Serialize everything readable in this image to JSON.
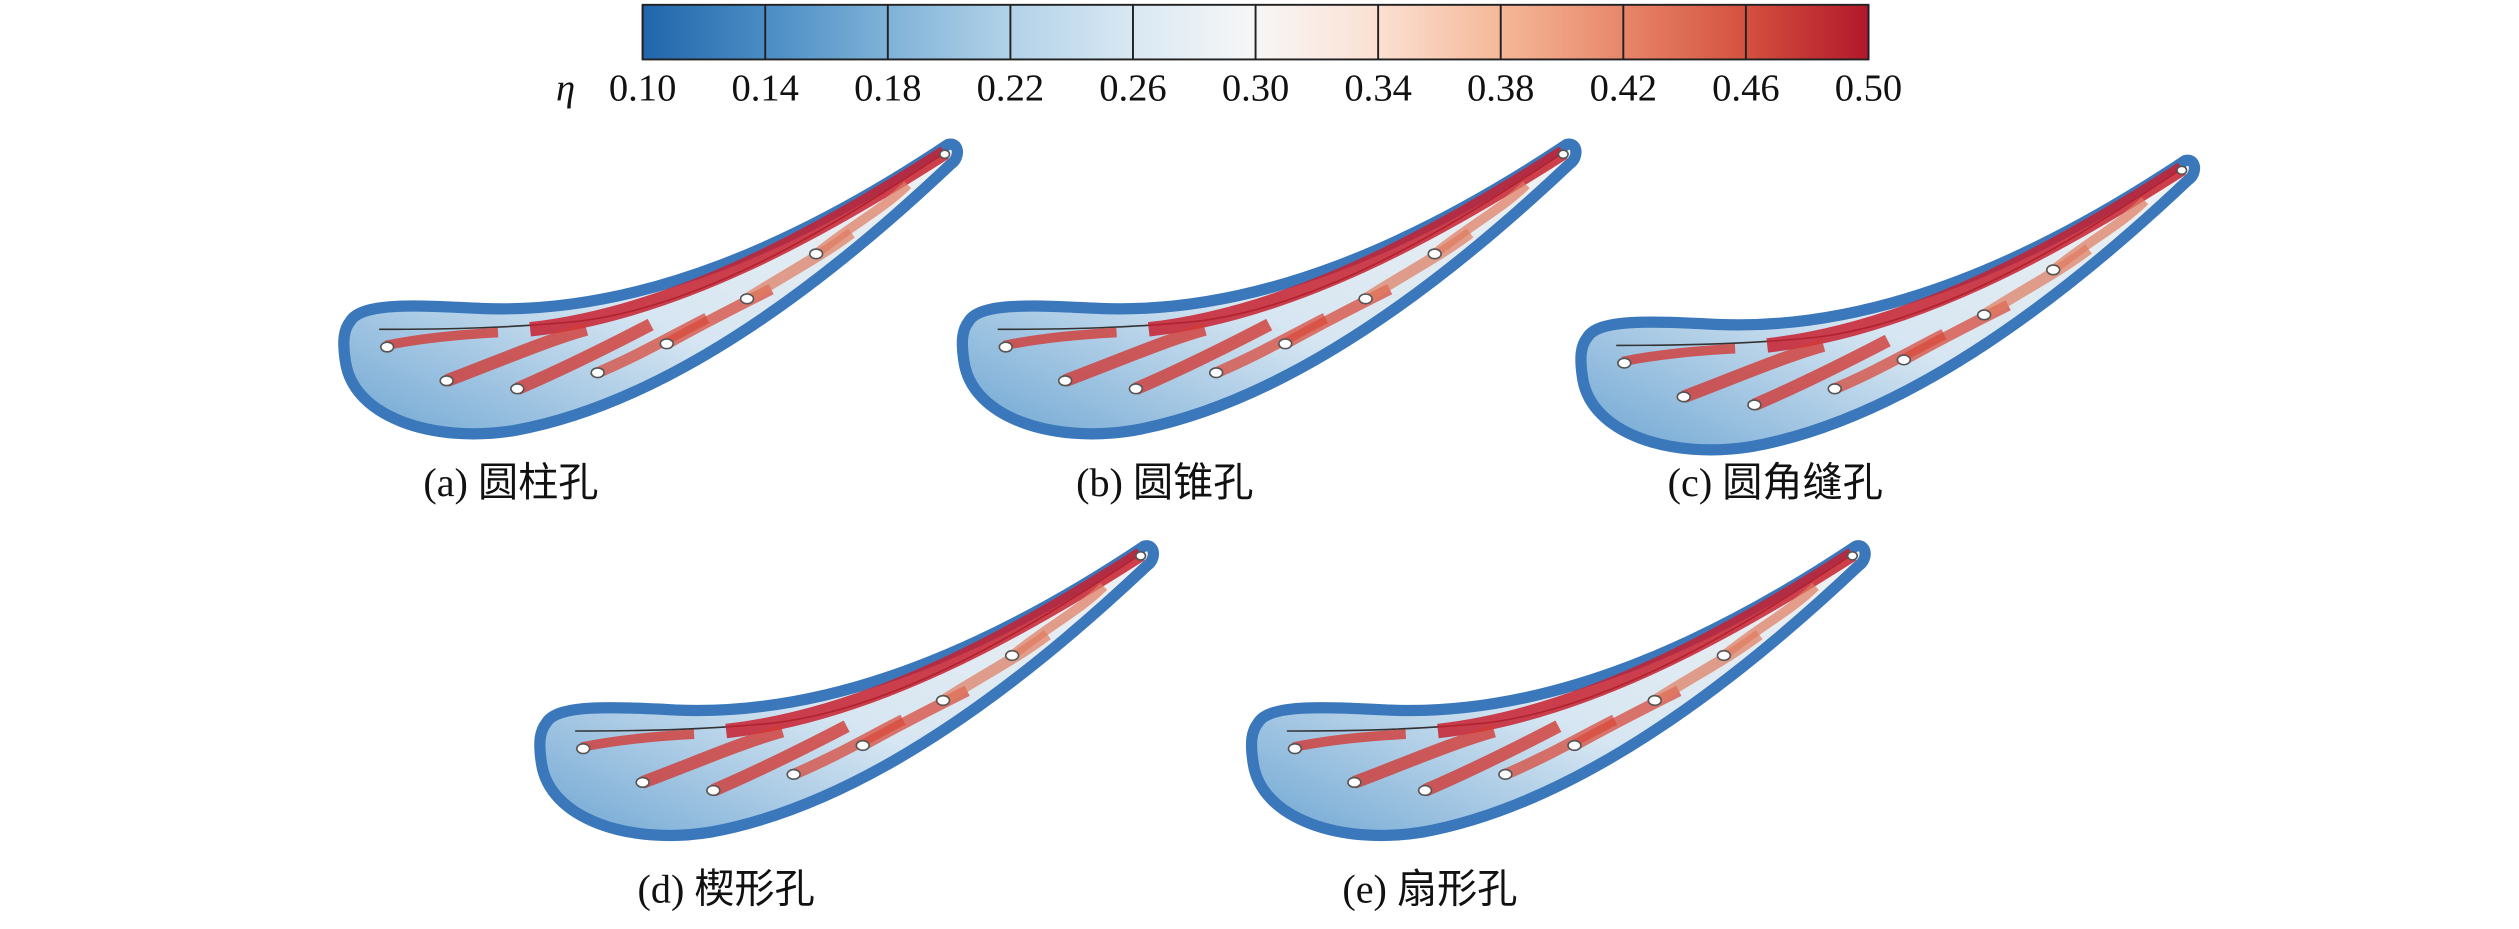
{
  "colorbar": {
    "symbol": "η",
    "ticks": [
      {
        "value": 0.1,
        "label": "0.10"
      },
      {
        "value": 0.14,
        "label": "0.14"
      },
      {
        "value": 0.18,
        "label": "0.18"
      },
      {
        "value": 0.22,
        "label": "0.22"
      },
      {
        "value": 0.26,
        "label": "0.26"
      },
      {
        "value": 0.3,
        "label": "0.30"
      },
      {
        "value": 0.34,
        "label": "0.34"
      },
      {
        "value": 0.38,
        "label": "0.38"
      },
      {
        "value": 0.42,
        "label": "0.42"
      },
      {
        "value": 0.46,
        "label": "0.46"
      },
      {
        "value": 0.5,
        "label": "0.50"
      }
    ],
    "colors": [
      "#2166ac",
      "#4a8cc4",
      "#7fb2d8",
      "#b2d2e8",
      "#d9e8f3",
      "#f7f7f7",
      "#fbe0d2",
      "#f5b898",
      "#e8866a",
      "#d4513f",
      "#b2182b"
    ]
  },
  "panels": [
    {
      "label": "(a) 圆柱孔"
    },
    {
      "label": "(b) 圆锥孔"
    },
    {
      "label": "(c) 圆角缝孔"
    },
    {
      "label": "(d) 楔形孔"
    },
    {
      "label": "(e) 扇形孔"
    }
  ]
}
